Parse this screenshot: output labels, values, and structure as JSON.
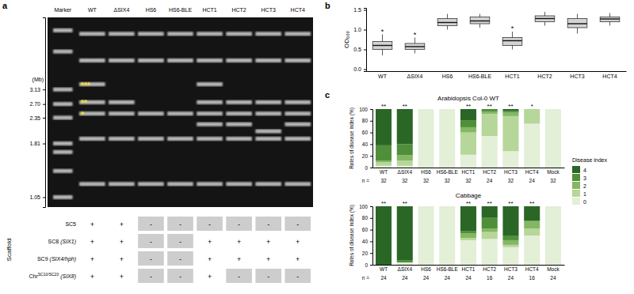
{
  "panel_labels": [
    "a",
    "b",
    "c"
  ],
  "gel": {
    "lanes": [
      "Marker",
      "WT",
      "ΔSIX4",
      "HS6",
      "HS6-BLE",
      "HCT1",
      "HCT2",
      "HCT3",
      "HCT4"
    ],
    "axis_label": "(Mb)",
    "log": "y",
    "ylim": [
      0.95,
      6.5
    ],
    "yticks": [
      3.13,
      {
        "value": 2.7,
        "label": "2.70"
      },
      2.35,
      1.81,
      1.05
    ],
    "bands": [
      [
        5.7,
        4.6,
        3.13,
        2.7,
        2.35,
        1.81,
        1.66,
        1.37,
        1.05
      ],
      [
        5.5,
        4.2,
        3.3,
        2.75,
        2.45,
        1.9,
        1.2
      ],
      [
        5.5,
        4.2,
        2.75,
        2.45,
        1.9,
        1.2
      ],
      [
        5.5,
        4.2,
        2.45,
        1.9,
        1.2
      ],
      [
        5.5,
        4.2,
        2.45,
        1.9,
        1.2
      ],
      [
        5.5,
        4.2,
        3.3,
        2.75,
        2.45,
        2.2,
        1.9,
        1.2
      ],
      [
        5.5,
        4.2,
        2.75,
        2.45,
        2.2,
        1.9,
        1.2
      ],
      [
        5.5,
        4.2,
        2.75,
        2.45,
        2.05,
        1.9,
        1.2
      ],
      [
        5.5,
        4.2,
        2.75,
        2.45,
        2.2,
        1.9,
        1.2
      ]
    ],
    "asterisks": [
      {
        "label": "***",
        "lane": "WT",
        "size": 3.3
      },
      {
        "label": "**",
        "lane": "WT",
        "size": 2.75
      },
      {
        "label": "*",
        "lane": "WT",
        "size": 2.45
      }
    ]
  },
  "table": {
    "title": "Scaffold",
    "negative": "-",
    "rows": [
      {
        "label": "SC5",
        "cells": [
          "+",
          "+",
          "-",
          "-",
          "-",
          "-",
          "-",
          "-"
        ]
      },
      {
        "label": "SC8",
        "gene": "(SIX1)",
        "cells": [
          "+",
          "+",
          "-",
          "-",
          "+",
          "+",
          "+",
          "+"
        ]
      },
      {
        "label": "SC9",
        "gene": "(SIX4/hph)",
        "cells": [
          "+",
          "+",
          "-",
          "-",
          "+",
          "+",
          "+",
          "+"
        ]
      },
      {
        "label": "Chr",
        "sup": "SC10/SC20",
        "gene": "(SIX8)",
        "cells": [
          "+",
          "+",
          "-",
          "-",
          "+",
          "-",
          "-",
          "-"
        ]
      }
    ]
  },
  "chart_data": [
    {
      "type": "box",
      "ylabel": "OD₆₀₀",
      "categories": [
        "WT",
        "ΔSIX4",
        "HS6",
        "HS6-BLE",
        "HCT1",
        "HCT2",
        "HCT3",
        "HCT4"
      ],
      "min": [
        0.35,
        0.4,
        1.0,
        1.05,
        0.5,
        1.1,
        0.9,
        1.1
      ],
      "q1": [
        0.5,
        0.5,
        1.1,
        1.15,
        0.6,
        1.2,
        1.05,
        1.2
      ],
      "median": [
        0.6,
        0.57,
        1.18,
        1.22,
        0.72,
        1.28,
        1.15,
        1.27
      ],
      "q3": [
        0.7,
        0.65,
        1.28,
        1.32,
        0.8,
        1.35,
        1.28,
        1.32
      ],
      "max": [
        0.88,
        0.8,
        1.4,
        1.4,
        0.95,
        1.45,
        1.4,
        1.42
      ],
      "significance": [
        "*",
        "*",
        null,
        null,
        "*",
        null,
        null,
        null
      ],
      "color": "#d4d4d4",
      "ylim": [
        -0.05,
        1.55
      ],
      "yticks": [
        {
          "value": 0,
          "label": "0.0"
        },
        0.5,
        {
          "value": 1,
          "label": "1.0"
        },
        1.5
      ]
    },
    {
      "type": "bar",
      "stacked": true,
      "title": "Arabidopsis Col-0 WT",
      "ylabel": "Rates of disease index (%)",
      "categories": [
        "WT",
        "ΔSIX4",
        "HS6",
        "HS6-BLE",
        "HCT1",
        "HCT2",
        "HCT3",
        "HCT4",
        "Mock"
      ],
      "series": [
        {
          "name": "0",
          "color": "#e3efd6",
          "values": [
            3,
            3,
            100,
            100,
            22,
            54,
            28,
            75,
            100
          ]
        },
        {
          "name": "1",
          "color": "#b6d69a",
          "values": [
            6,
            9,
            0,
            0,
            38,
            38,
            60,
            25,
            0
          ]
        },
        {
          "name": "2",
          "color": "#84b763",
          "values": [
            3,
            9,
            0,
            0,
            9,
            4,
            6,
            0,
            0
          ]
        },
        {
          "name": "3",
          "color": "#4f8f3a",
          "values": [
            26,
            19,
            0,
            0,
            12,
            4,
            3,
            0,
            0
          ]
        },
        {
          "name": "4",
          "color": "#2a6626",
          "values": [
            62,
            60,
            0,
            0,
            19,
            0,
            3,
            0,
            0
          ]
        }
      ],
      "ylim": [
        0,
        100
      ],
      "yticks": [
        0,
        20,
        40,
        60,
        80,
        100
      ],
      "legend": "right",
      "legend_title": "Disease index",
      "n_label": "n =",
      "n": [
        32,
        32,
        32,
        32,
        32,
        24,
        32,
        24,
        32
      ],
      "significance": [
        "**",
        "**",
        null,
        null,
        "**",
        "**",
        "**",
        "*",
        null
      ]
    },
    {
      "type": "bar",
      "stacked": true,
      "title": "Cabbage",
      "ylabel": "Rates of disease index (%)",
      "categories": [
        "WT",
        "ΔSIX4",
        "HS6",
        "HS6-BLE",
        "HCT1",
        "HCT2",
        "HCT3",
        "HCT4",
        "Mock"
      ],
      "series": [
        {
          "color": "#e3efd6",
          "values": [
            0,
            4,
            100,
            100,
            42,
            44,
            30,
            50,
            100
          ]
        },
        {
          "color": "#b6d69a",
          "values": [
            0,
            0,
            0,
            0,
            4,
            12,
            4,
            12,
            0
          ]
        },
        {
          "color": "#84b763",
          "values": [
            0,
            0,
            0,
            0,
            8,
            6,
            8,
            13,
            0
          ]
        },
        {
          "color": "#4f8f3a",
          "values": [
            0,
            4,
            0,
            0,
            4,
            19,
            8,
            0,
            0
          ]
        },
        {
          "color": "#2a6626",
          "values": [
            100,
            92,
            0,
            0,
            42,
            19,
            50,
            25,
            0
          ]
        }
      ],
      "ylim": [
        0,
        100
      ],
      "yticks": [
        0,
        20,
        40,
        60,
        80,
        100
      ],
      "n_label": "n =",
      "n": [
        24,
        24,
        24,
        24,
        24,
        16,
        24,
        16,
        24
      ],
      "significance": [
        "**",
        "**",
        null,
        null,
        "**",
        "**",
        "**",
        "**",
        null
      ]
    }
  ]
}
